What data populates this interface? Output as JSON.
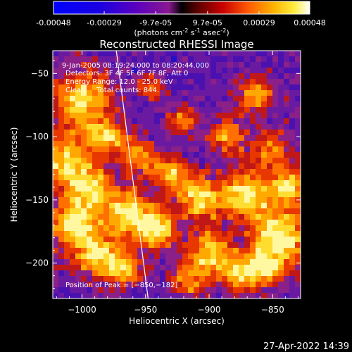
{
  "colorbar": {
    "tick_labels": [
      "-0.00048",
      "-0.00029",
      "-9.7e-05",
      "9.7e-05",
      "0.00029",
      "0.00048"
    ],
    "tick_values": [
      -0.00048,
      -0.00029,
      -9.7e-05,
      9.7e-05,
      0.00029,
      0.00048
    ],
    "range": [
      -0.00048,
      0.00048
    ],
    "units_prefix": "(photons cm",
    "units_exp1": "-2",
    "units_mid": " s",
    "units_exp2": "-1",
    "units_mid2": " asec",
    "units_exp3": "-2",
    "units_suffix": ")"
  },
  "chart_data": {
    "type": "heatmap",
    "title": "Reconstructed RHESSI Image",
    "xlabel": "Heliocentric X (arcsec)",
    "ylabel": "Heliocentric Y (arcsec)",
    "xlim": [
      -1023,
      -828
    ],
    "ylim": [
      -228,
      -32
    ],
    "x_ticks": [
      -1000,
      -950,
      -900,
      -850
    ],
    "x_tick_labels": [
      "−1000",
      "−950",
      "−900",
      "−850"
    ],
    "y_ticks": [
      -50,
      -100,
      -150,
      -200
    ],
    "y_tick_labels": [
      "−50",
      "−100",
      "−150",
      "−200"
    ],
    "limb_line": [
      [
        -973,
        -32
      ],
      [
        -948,
        -228
      ]
    ],
    "peak_position": [
      -850,
      -182
    ],
    "annotations": [
      "9-Jan-2005 08:19:24.000 to 08:20:44.000",
      "Detectors: 3F 4F 5F 6F 7F 8F, Att 0",
      "Energy Range: 12.0 - 25.0 keV",
      "Clean     Total counts: 844."
    ],
    "peak_label": "Position of Peak = [−850,−182]"
  },
  "footer": {
    "timestamp": "27-Apr-2022 14:39"
  }
}
